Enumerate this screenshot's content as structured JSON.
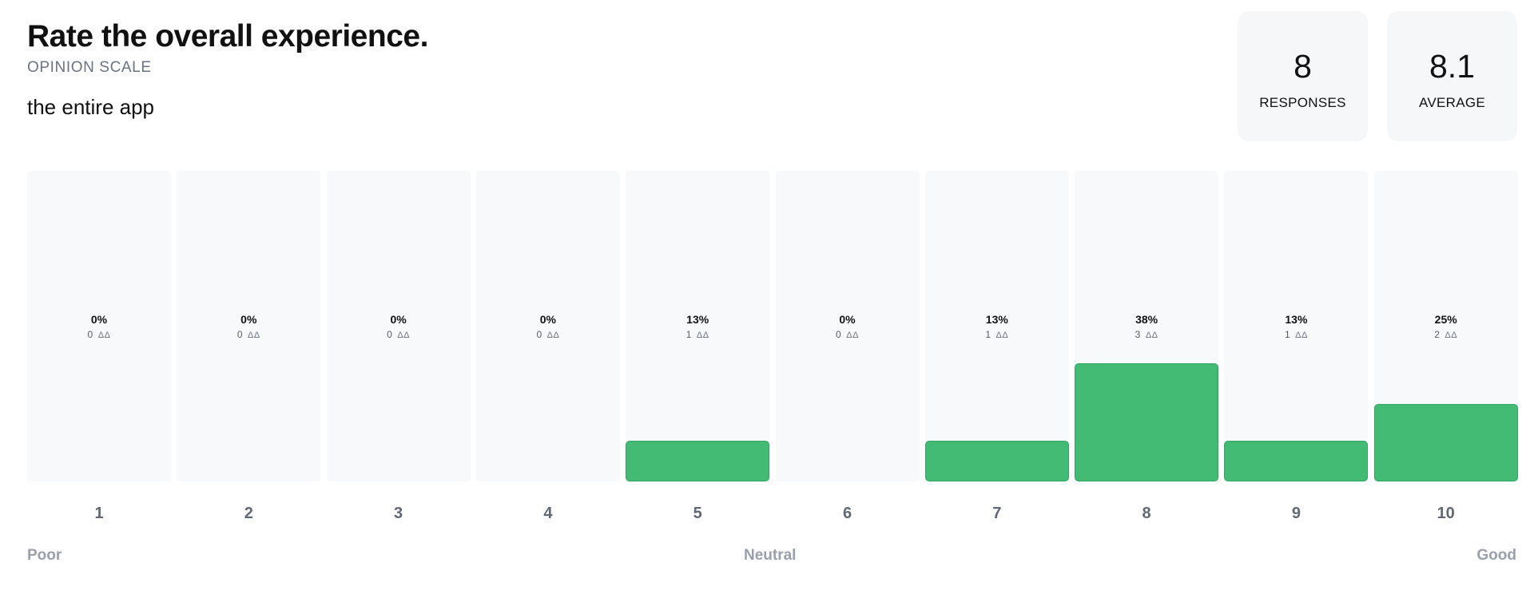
{
  "question": {
    "title": "Rate the overall experience.",
    "type_label": "OPINION SCALE",
    "description": "the entire app"
  },
  "stats": {
    "responses": {
      "value": "8",
      "label": "RESPONSES"
    },
    "average": {
      "value": "8.1",
      "label": "AVERAGE"
    }
  },
  "scale_labels": {
    "left": "Poor",
    "middle": "Neutral",
    "right": "Good"
  },
  "colors": {
    "bar": "#43bb74",
    "column_background": "#f8f9fb"
  },
  "count_icon": "people-icon",
  "chart_data": {
    "type": "bar",
    "categories": [
      "1",
      "2",
      "3",
      "4",
      "5",
      "6",
      "7",
      "8",
      "9",
      "10"
    ],
    "values": [
      0,
      0,
      0,
      0,
      13,
      0,
      13,
      38,
      13,
      25
    ],
    "percent_labels": [
      "0%",
      "0%",
      "0%",
      "0%",
      "13%",
      "0%",
      "13%",
      "38%",
      "13%",
      "25%"
    ],
    "counts": [
      0,
      0,
      0,
      0,
      1,
      0,
      1,
      3,
      1,
      2
    ],
    "ylim": [
      0,
      100
    ]
  }
}
